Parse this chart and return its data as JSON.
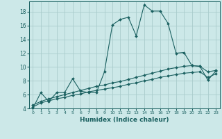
{
  "xlabel": "Humidex (Indice chaleur)",
  "ylabel": "",
  "background_color": "#cce8e8",
  "grid_color": "#aacccc",
  "line_color": "#1a6060",
  "xlim": [
    -0.5,
    23.5
  ],
  "ylim": [
    4,
    19.5
  ],
  "yticks": [
    4,
    6,
    8,
    10,
    12,
    14,
    16,
    18
  ],
  "xticks": [
    0,
    1,
    2,
    3,
    4,
    5,
    6,
    7,
    8,
    9,
    10,
    11,
    12,
    13,
    14,
    15,
    16,
    17,
    18,
    19,
    20,
    21,
    22,
    23
  ],
  "line1_x": [
    0,
    1,
    2,
    3,
    4,
    5,
    6,
    7,
    8,
    9,
    10,
    11,
    12,
    13,
    14,
    15,
    16,
    17,
    18,
    19,
    20,
    21,
    22,
    23
  ],
  "line1_y": [
    4.0,
    6.3,
    5.0,
    6.3,
    6.3,
    8.3,
    6.5,
    6.3,
    6.3,
    9.3,
    16.1,
    16.9,
    17.2,
    14.5,
    19.0,
    18.1,
    18.1,
    16.3,
    12.0,
    12.1,
    10.2,
    10.1,
    8.1,
    9.4
  ],
  "line2_x": [
    0,
    1,
    2,
    3,
    4,
    5,
    6,
    7,
    8,
    9,
    10,
    11,
    12,
    13,
    14,
    15,
    16,
    17,
    18,
    19,
    20,
    21,
    22,
    23
  ],
  "line2_y": [
    4.5,
    5.0,
    5.4,
    5.7,
    6.0,
    6.3,
    6.6,
    6.9,
    7.2,
    7.4,
    7.7,
    7.9,
    8.2,
    8.5,
    8.8,
    9.1,
    9.4,
    9.7,
    9.9,
    10.1,
    10.2,
    10.1,
    9.3,
    9.5
  ],
  "line3_x": [
    0,
    1,
    2,
    3,
    4,
    5,
    6,
    7,
    8,
    9,
    10,
    11,
    12,
    13,
    14,
    15,
    16,
    17,
    18,
    19,
    20,
    21,
    22,
    23
  ],
  "line3_y": [
    4.2,
    4.8,
    5.1,
    5.4,
    5.6,
    5.9,
    6.1,
    6.4,
    6.6,
    6.8,
    7.0,
    7.2,
    7.5,
    7.7,
    8.0,
    8.2,
    8.5,
    8.7,
    8.9,
    9.1,
    9.2,
    9.3,
    8.5,
    9.0
  ]
}
